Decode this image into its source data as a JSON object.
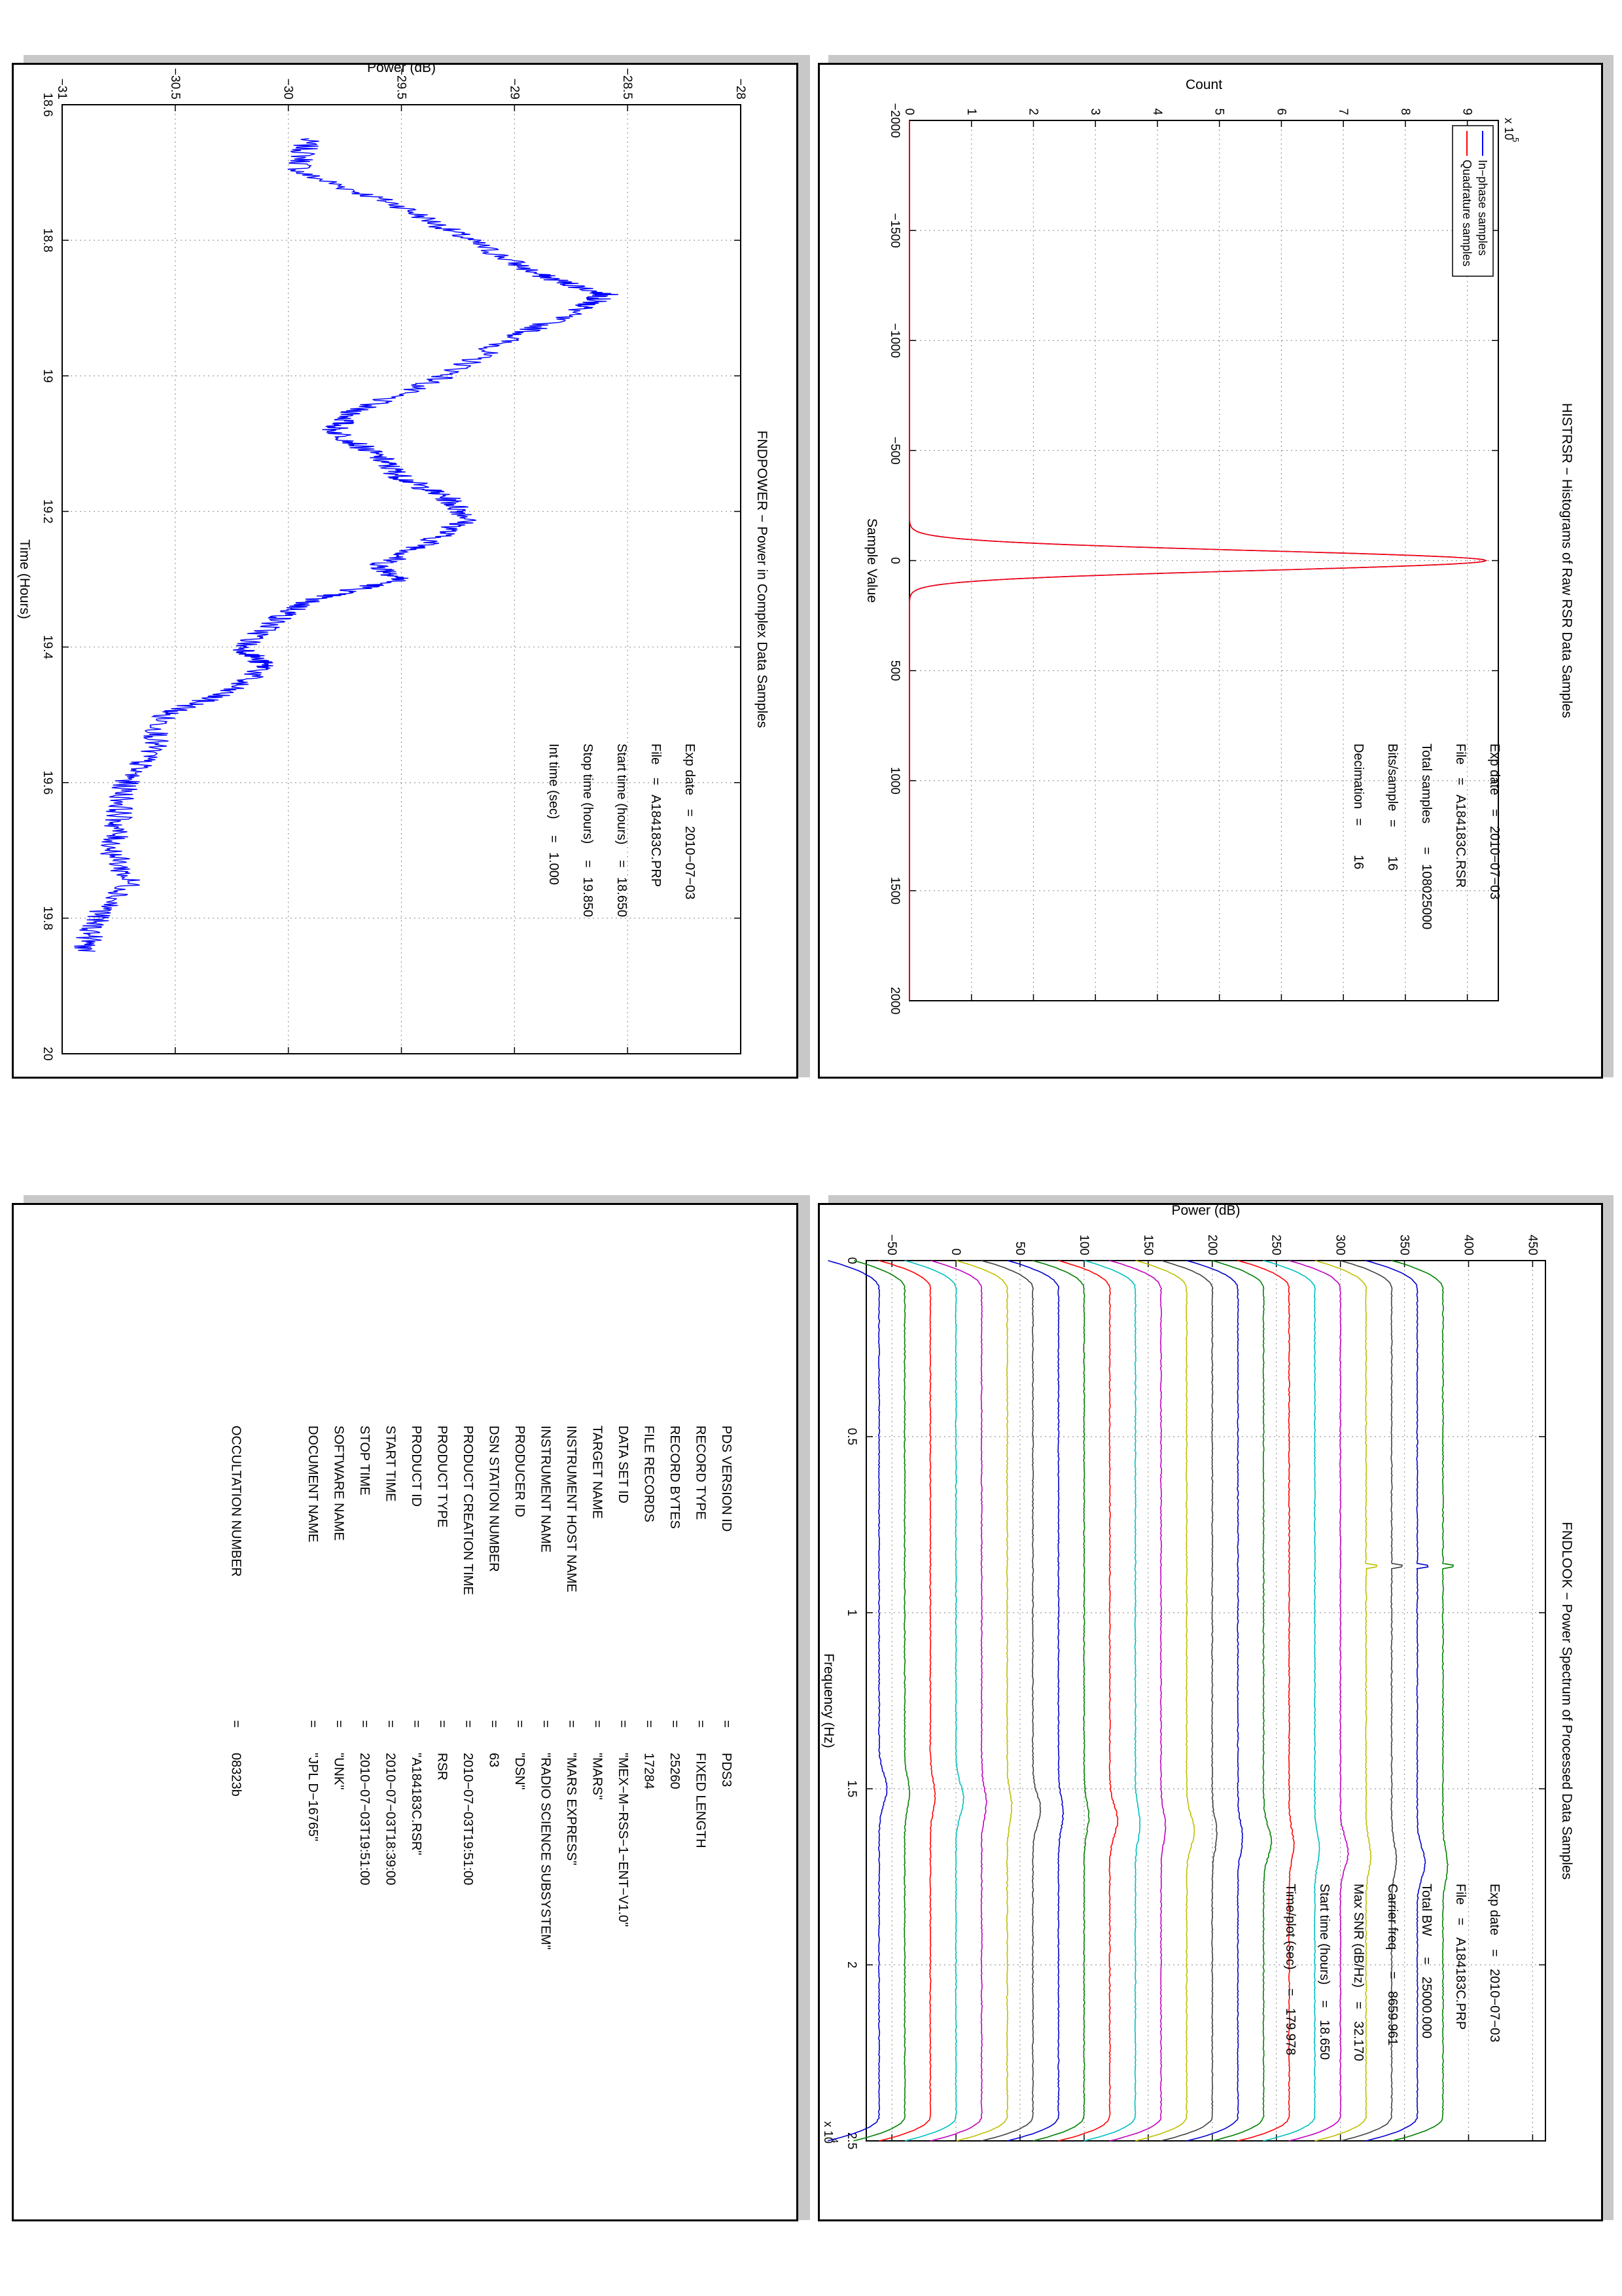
{
  "histogram": {
    "chart_data": {
      "type": "line",
      "title": "HISTRSR − Histograms of Raw RSR Data Samples",
      "xlabel": "Sample Value",
      "ylabel": "Count",
      "y_exponent_label": "x 10",
      "y_exponent": "5",
      "xlim": [
        -2000,
        2000
      ],
      "ylim": [
        0,
        9.5
      ],
      "xticks": [
        "−2000",
        "−1500",
        "−1000",
        "−500",
        "0",
        "500",
        "1000",
        "1500",
        "2000"
      ],
      "yticks": [
        "0",
        "1",
        "2",
        "3",
        "4",
        "5",
        "6",
        "7",
        "8",
        "9"
      ],
      "grid": true,
      "legend": "top-left",
      "series": [
        {
          "name": "In−phase samples",
          "color": "#0000ff",
          "peak_x": 0,
          "peak_y": 9.3,
          "sigma": 45
        },
        {
          "name": "Quadrature samples",
          "color": "#ff0000",
          "peak_x": 0,
          "peak_y": 9.3,
          "sigma": 45
        }
      ]
    },
    "info": [
      {
        "label": "Exp date",
        "sep": "=",
        "value": "2010−07−03"
      },
      {
        "label": "File",
        "sep": "=",
        "value": "A184183C.RSR"
      },
      {
        "label": "Total samples",
        "sep": "=",
        "value": "108025000"
      },
      {
        "label": "Bits/sample",
        "sep": "=",
        "value": "16"
      },
      {
        "label": "Decimation",
        "sep": "=",
        "value": "16"
      }
    ]
  },
  "power": {
    "chart_data": {
      "type": "line",
      "title": "FNDPOWER − Power in Complex Data Samples",
      "xlabel": "Time (Hours)",
      "ylabel": "Power (dB)",
      "xlim": [
        18.6,
        20
      ],
      "ylim": [
        -31,
        -28
      ],
      "xticks": [
        "18.6",
        "18.8",
        "19",
        "19.2",
        "19.4",
        "19.6",
        "19.8",
        "20"
      ],
      "yticks": [
        "−31",
        "−30.5",
        "−30",
        "−29.5",
        "−29",
        "−28.5",
        "−28"
      ],
      "grid": true,
      "color": "#0000ff",
      "x": [
        18.65,
        18.7,
        18.75,
        18.8,
        18.85,
        18.88,
        18.9,
        18.95,
        19.0,
        19.05,
        19.08,
        19.12,
        19.15,
        19.18,
        19.21,
        19.25,
        19.28,
        19.3,
        19.33,
        19.36,
        19.4,
        19.43,
        19.47,
        19.5,
        19.55,
        19.6,
        19.65,
        19.7,
        19.75,
        19.8,
        19.85
      ],
      "y": [
        -29.92,
        -29.95,
        -29.5,
        -29.2,
        -28.9,
        -28.6,
        -28.7,
        -29.05,
        -29.3,
        -29.7,
        -29.8,
        -29.6,
        -29.5,
        -29.3,
        -29.2,
        -29.4,
        -29.6,
        -29.5,
        -29.9,
        -30.05,
        -30.2,
        -30.1,
        -30.3,
        -30.55,
        -30.6,
        -30.72,
        -30.75,
        -30.78,
        -30.7,
        -30.85,
        -30.9
      ]
    },
    "info": [
      {
        "label": "Exp date",
        "sep": "=",
        "value": "2010−07−03"
      },
      {
        "label": "File",
        "sep": "=",
        "value": "A184183C.PRP"
      },
      {
        "label": "Start time (hours)",
        "sep": "=",
        "value": "18.650"
      },
      {
        "label": "Stop time (hours)",
        "sep": "=",
        "value": "19.850"
      },
      {
        "label": "Int time (sec)",
        "sep": "=",
        "value": "1.000"
      }
    ]
  },
  "spectrum": {
    "chart_data": {
      "type": "line",
      "title": "FNDLOOK − Power Spectrum of Processed Data Samples",
      "xlabel": "Frequency (Hz)",
      "ylabel": "Power (dB)",
      "x_exponent_label": "x 10",
      "x_exponent": "4",
      "xlim": [
        0,
        25000
      ],
      "ylim": [
        -70,
        460
      ],
      "xticks": [
        "0",
        "0.5",
        "1",
        "1.5",
        "2",
        "2.5"
      ],
      "yticks": [
        "−50",
        "0",
        "50",
        "100",
        "150",
        "200",
        "250",
        "300",
        "350",
        "400",
        "450"
      ],
      "grid": true,
      "series_colors": [
        "#0000cc",
        "#008000",
        "#ff0000",
        "#00bfbf",
        "#bf00bf",
        "#bfbf00",
        "#404040"
      ],
      "series_offsets": [
        -60,
        -40,
        -20,
        0,
        20,
        40,
        60,
        80,
        100,
        120,
        140,
        160,
        180,
        200,
        220,
        240,
        260,
        280,
        300,
        320,
        340,
        360,
        380
      ]
    },
    "info": [
      {
        "label": "Exp date",
        "sep": "=",
        "value": "2010−07−03"
      },
      {
        "label": "File",
        "sep": "=",
        "value": "A184183C.PRP"
      },
      {
        "label": "Total BW",
        "sep": "=",
        "value": "25000.000"
      },
      {
        "label": "Carrier freq",
        "sep": "=",
        "value": "8659.961"
      },
      {
        "label": "Max SNR (dB/Hz)",
        "sep": "=",
        "value": "32.170"
      },
      {
        "label": "Start time (hours)",
        "sep": "=",
        "value": "18.650"
      },
      {
        "label": "Time/plot (sec)",
        "sep": "=",
        "value": "179.978"
      }
    ]
  },
  "labels": {
    "rows": [
      {
        "key": "PDS VERSION ID",
        "sep": "=",
        "value": "PDS3"
      },
      {
        "key": "RECORD TYPE",
        "sep": "=",
        "value": "FIXED LENGTH"
      },
      {
        "key": "RECORD BYTES",
        "sep": "=",
        "value": "25260"
      },
      {
        "key": "FILE RECORDS",
        "sep": "=",
        "value": "17284"
      },
      {
        "key": "DATA SET ID",
        "sep": "=",
        "value": "\"MEX−M−RSS−1−ENT−V1.0\""
      },
      {
        "key": "TARGET NAME",
        "sep": "=",
        "value": "\"MARS\""
      },
      {
        "key": "INSTRUMENT HOST NAME",
        "sep": "=",
        "value": "\"MARS EXPRESS\""
      },
      {
        "key": "INSTRUMENT NAME",
        "sep": "=",
        "value": "\"RADIO SCIENCE SUBSYSTEM\""
      },
      {
        "key": "PRODUCER ID",
        "sep": "=",
        "value": "\"DSN\""
      },
      {
        "key": "DSN STATION NUMBER",
        "sep": "=",
        "value": "63"
      },
      {
        "key": "PRODUCT CREATION TIME",
        "sep": "=",
        "value": "2010−07−03T19:51:00"
      },
      {
        "key": "PRODUCT TYPE",
        "sep": "=",
        "value": "RSR"
      },
      {
        "key": "PRODUCT ID",
        "sep": "=",
        "value": "\"A184183C.RSR\""
      },
      {
        "key": "START TIME",
        "sep": "=",
        "value": "2010−07−03T18:39:00"
      },
      {
        "key": "STOP TIME",
        "sep": "=",
        "value": "2010−07−03T19:51:00"
      },
      {
        "key": "SOFTWARE NAME",
        "sep": "=",
        "value": "\"UNK\""
      },
      {
        "key": "DOCUMENT NAME",
        "sep": "=",
        "value": "\"JPL D−16765\""
      }
    ],
    "occultation": {
      "key": "OCCULTATION NUMBER",
      "sep": "=",
      "value": "08323b"
    }
  }
}
